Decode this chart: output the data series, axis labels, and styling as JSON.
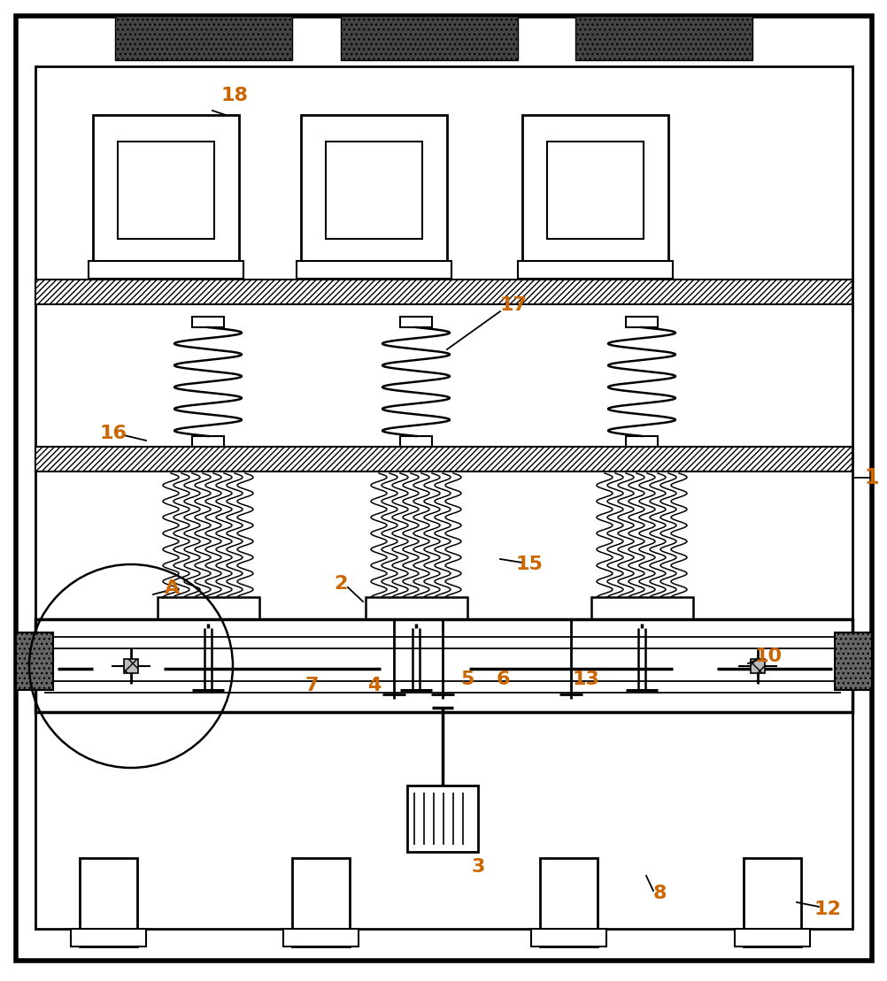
{
  "bg_color": "#ffffff",
  "line_color": "#000000",
  "label_color": "#cc6600",
  "figsize": [
    10.03,
    11.09
  ],
  "dpi": 100
}
